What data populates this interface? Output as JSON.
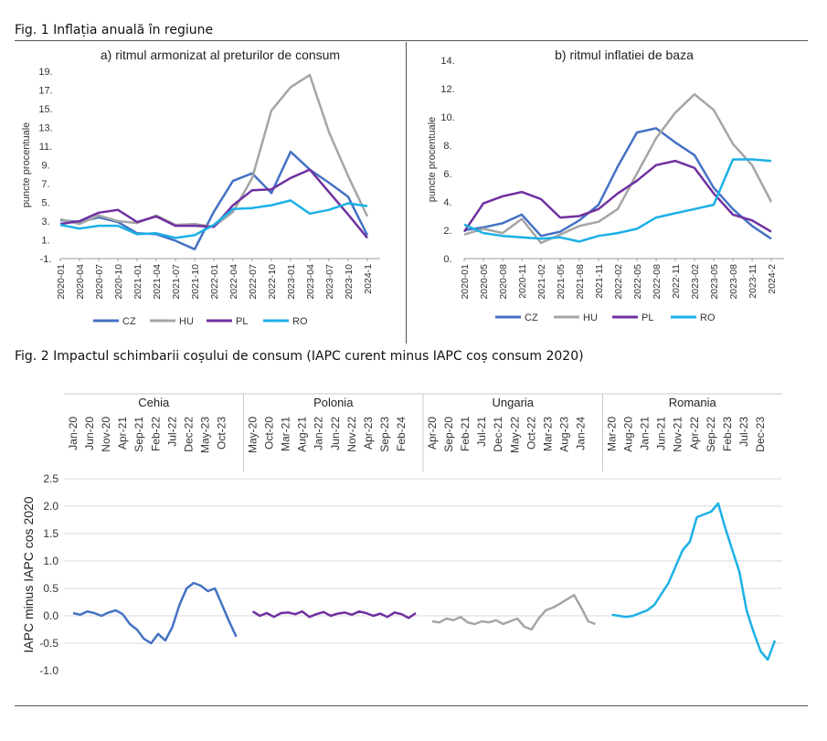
{
  "fig1_caption": "Fig. 1 Inflația anuală în regiune",
  "fig2_caption": "Fig. 2 Impactul schimbarii coșului de consum (IAPC curent minus IAPC coș consum 2020)",
  "colors": {
    "CZ": "#4472c4",
    "HU": "#a5a5a5",
    "PL": "#7030a0",
    "RO": "#1cb0e6"
  },
  "chart_data": [
    {
      "type": "line",
      "title": "a) ritmul armonizat al preturilor de consum",
      "ylabel": "puncte procentuale",
      "ylim": [
        -1,
        19
      ],
      "yticks": [
        -1,
        1,
        3,
        5,
        7,
        9,
        11,
        13,
        15,
        17,
        19
      ],
      "ytick_labels": [
        "-1.",
        "1.",
        "3.",
        "5.",
        "7.",
        "9.",
        "11.",
        "13.",
        "15.",
        "17.",
        "19."
      ],
      "xtick_labels": [
        "2020-01",
        "2020-04",
        "2020-07",
        "2020-10",
        "2021-01",
        "2021-04",
        "2021-07",
        "2021-10",
        "2022-01",
        "2022-04",
        "2022-07",
        "2022-10",
        "2023-01",
        "2023-04",
        "2023-07",
        "2023-10",
        "2024-1"
      ],
      "x_months": 50,
      "legend": "bottom",
      "series": [
        {
          "name": "CZ",
          "step": 3,
          "values": [
            3.1,
            2.9,
            3.4,
            2.9,
            1.7,
            1.6,
            0.9,
            0.0,
            4.0,
            7.3,
            8.1,
            6.0,
            10.4,
            8.5,
            7.1,
            5.6,
            1.5
          ]
        },
        {
          "name": "HU",
          "step": 3,
          "values": [
            3.2,
            2.7,
            3.6,
            3.0,
            2.8,
            3.6,
            2.6,
            2.7,
            2.4,
            4.0,
            7.6,
            14.8,
            17.3,
            18.6,
            12.5,
            7.8,
            3.5
          ]
        },
        {
          "name": "PL",
          "step": 3,
          "values": [
            2.7,
            3.0,
            3.9,
            4.2,
            2.9,
            3.5,
            2.5,
            2.5,
            2.4,
            4.7,
            6.3,
            6.4,
            7.6,
            8.5,
            6.1,
            3.7,
            1.2
          ]
        },
        {
          "name": "RO",
          "step": 3,
          "values": [
            2.6,
            2.2,
            2.5,
            2.5,
            1.6,
            1.7,
            1.2,
            1.5,
            2.6,
            4.3,
            4.4,
            4.7,
            5.2,
            3.8,
            4.2,
            4.9,
            4.6
          ]
        }
      ]
    },
    {
      "type": "line",
      "title": "b) ritmul inflatiei de baza",
      "ylabel": "puncte procentuale",
      "ylim": [
        0,
        14
      ],
      "yticks": [
        0,
        2,
        4,
        6,
        8,
        10,
        12,
        14
      ],
      "ytick_labels": [
        "0.",
        "2.",
        "4.",
        "6.",
        "8.",
        "10.",
        "12.",
        "14."
      ],
      "xtick_labels": [
        "2020-01",
        "2020-05",
        "2020-08",
        "2020-11",
        "2021-02",
        "2021-05",
        "2021-08",
        "2021-11",
        "2022-02",
        "2022-05",
        "2022-08",
        "2022-11",
        "2023-02",
        "2023-05",
        "2023-08",
        "2023-11",
        "2024-2"
      ],
      "x_months": 50,
      "legend": "bottom",
      "series": [
        {
          "name": "CZ",
          "step": 3,
          "values": [
            2.0,
            2.2,
            2.5,
            3.1,
            1.6,
            1.9,
            2.7,
            3.8,
            6.5,
            8.9,
            9.2,
            8.2,
            7.3,
            5.0,
            3.5,
            2.3,
            1.4
          ]
        },
        {
          "name": "HU",
          "step": 3,
          "values": [
            1.7,
            2.1,
            1.8,
            2.8,
            1.1,
            1.7,
            2.3,
            2.6,
            3.5,
            6.0,
            8.5,
            10.3,
            11.6,
            10.5,
            8.1,
            6.6,
            4.0
          ]
        },
        {
          "name": "PL",
          "step": 3,
          "values": [
            1.9,
            3.9,
            4.4,
            4.7,
            4.2,
            2.9,
            3.0,
            3.5,
            4.6,
            5.5,
            6.6,
            6.9,
            6.4,
            4.6,
            3.1,
            2.7,
            1.9
          ]
        },
        {
          "name": "RO",
          "step": 3,
          "values": [
            2.4,
            1.8,
            1.6,
            1.5,
            1.4,
            1.5,
            1.2,
            1.6,
            1.8,
            2.1,
            2.9,
            3.2,
            3.5,
            3.8,
            7.0,
            7.0,
            6.9
          ]
        }
      ]
    },
    {
      "type": "line",
      "ylabel": "IAPC minus IAPC cos 2020",
      "ylim": [
        -1.0,
        2.5
      ],
      "yticks": [
        -1.0,
        -0.5,
        0.0,
        0.5,
        1.0,
        1.5,
        2.0,
        2.5
      ],
      "ytick_labels": [
        "-1.0",
        "-0.5",
        "0.0",
        "0.5",
        "1.0",
        "1.5",
        "2.0",
        "2.5"
      ],
      "grid": true,
      "panels": [
        {
          "name": "Cehia",
          "ticks": [
            "Jan-20",
            "Jun-20",
            "Nov-20",
            "Apr-21",
            "Sep-21",
            "Feb-22",
            "Jul-22",
            "Dec-22",
            "May-23",
            "Oct-23"
          ],
          "values": [
            0.05,
            0.02,
            0.08,
            0.05,
            0.0,
            0.06,
            0.1,
            0.03,
            -0.15,
            -0.25,
            -0.42,
            -0.5,
            -0.33,
            -0.45,
            -0.2,
            0.2,
            0.5,
            0.6,
            0.55,
            0.45,
            0.5,
            0.2,
            -0.1,
            -0.38
          ]
        },
        {
          "name": "Polonia",
          "ticks": [
            "May-20",
            "Oct-20",
            "Mar-21",
            "Aug-21",
            "Jan-22",
            "Jun-22",
            "Nov-22",
            "Apr-23",
            "Sep-23",
            "Feb-24"
          ],
          "values": [
            0.08,
            0.0,
            0.05,
            -0.02,
            0.05,
            0.06,
            0.03,
            0.08,
            -0.02,
            0.03,
            0.07,
            0.0,
            0.04,
            0.06,
            0.02,
            0.08,
            0.05,
            0.0,
            0.04,
            -0.02,
            0.06,
            0.03,
            -0.04,
            0.05
          ]
        },
        {
          "name": "Ungaria",
          "ticks": [
            "Apr-20",
            "Sep-20",
            "Feb-21",
            "Jul-21",
            "Dec-21",
            "May-22",
            "Oct-22",
            "Mar-23",
            "Aug-23",
            "Jan-24"
          ],
          "values": [
            -0.1,
            -0.12,
            -0.05,
            -0.08,
            -0.02,
            -0.12,
            -0.15,
            -0.1,
            -0.12,
            -0.08,
            -0.15,
            -0.1,
            -0.05,
            -0.2,
            -0.25,
            -0.05,
            0.1,
            0.15,
            0.22,
            0.3,
            0.38,
            0.15,
            -0.1,
            -0.15
          ]
        },
        {
          "name": "Romania",
          "ticks": [
            "Mar-20",
            "Aug-20",
            "Jan-21",
            "Jun-21",
            "Nov-21",
            "Apr-22",
            "Sep-22",
            "Feb-23",
            "Jul-23",
            "Dec-23"
          ],
          "values": [
            0.02,
            0.0,
            -0.02,
            0.0,
            0.05,
            0.1,
            0.2,
            0.4,
            0.6,
            0.9,
            1.2,
            1.35,
            1.8,
            1.85,
            1.9,
            2.05,
            1.6,
            1.2,
            0.8,
            0.1,
            -0.3,
            -0.65,
            -0.8,
            -0.45
          ]
        }
      ]
    }
  ]
}
